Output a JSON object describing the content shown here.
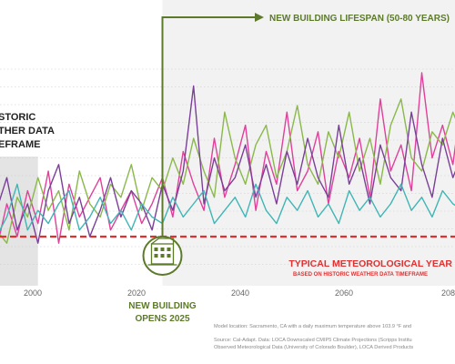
{
  "chart_data": {
    "type": "line",
    "xlim": [
      1990,
      2100
    ],
    "x_ticks": [
      2000,
      2020,
      2040,
      2060,
      2080
    ],
    "tick_labels": [
      "2000",
      "2020",
      "2040",
      "2060",
      "208"
    ],
    "grid": "horizontal dotted",
    "series": [
      {
        "color": "#e0409a",
        "x": [
          1993,
          1995,
          1997,
          1999,
          2001,
          2003,
          2005,
          2007,
          2009,
          2011,
          2013,
          2015,
          2017,
          2019,
          2021,
          2023,
          2025,
          2027,
          2029,
          2031,
          2033,
          2035,
          2037,
          2039,
          2041,
          2043,
          2045,
          2047,
          2049,
          2051,
          2053,
          2055,
          2057,
          2059,
          2061,
          2063,
          2065,
          2067,
          2069,
          2071,
          2073,
          2075,
          2077,
          2079,
          2081,
          2083
        ],
        "values": [
          3,
          10,
          5,
          12,
          7,
          15,
          4,
          13,
          8,
          11,
          14,
          6,
          9,
          12,
          7,
          10,
          14,
          8,
          18,
          13,
          9,
          20,
          11,
          16,
          22,
          9,
          18,
          13,
          24,
          12,
          15,
          21,
          10,
          18,
          14,
          20,
          11,
          26,
          15,
          19,
          12,
          30,
          17,
          22,
          16,
          28
        ]
      },
      {
        "color": "#8ab84a",
        "x": [
          1993,
          1995,
          1997,
          1999,
          2001,
          2003,
          2005,
          2007,
          2009,
          2011,
          2013,
          2015,
          2017,
          2019,
          2021,
          2023,
          2025,
          2027,
          2029,
          2031,
          2033,
          2035,
          2037,
          2039,
          2041,
          2043,
          2045,
          2047,
          2049,
          2051,
          2053,
          2055,
          2057,
          2059,
          2061,
          2063,
          2065,
          2067,
          2069,
          2071,
          2073,
          2075,
          2077,
          2079,
          2081,
          2083
        ],
        "values": [
          6,
          4,
          11,
          8,
          14,
          9,
          12,
          6,
          15,
          10,
          8,
          13,
          11,
          16,
          9,
          14,
          12,
          17,
          13,
          20,
          15,
          11,
          24,
          17,
          13,
          19,
          22,
          14,
          18,
          25,
          16,
          13,
          21,
          17,
          24,
          15,
          20,
          13,
          22,
          26,
          17,
          15,
          21,
          19,
          24,
          20
        ]
      },
      {
        "color": "#7b3f98",
        "x": [
          1993,
          1995,
          1997,
          1999,
          2001,
          2003,
          2005,
          2007,
          2009,
          2011,
          2013,
          2015,
          2017,
          2019,
          2021,
          2023,
          2025,
          2027,
          2029,
          2031,
          2033,
          2035,
          2037,
          2039,
          2041,
          2043,
          2045,
          2047,
          2049,
          2051,
          2053,
          2055,
          2057,
          2059,
          2061,
          2063,
          2065,
          2067,
          2069,
          2071,
          2073,
          2075,
          2077,
          2079,
          2081,
          2083
        ],
        "values": [
          9,
          14,
          6,
          10,
          4,
          12,
          16,
          7,
          11,
          5,
          9,
          14,
          8,
          12,
          10,
          6,
          13,
          9,
          15,
          28,
          10,
          17,
          12,
          14,
          19,
          11,
          16,
          10,
          18,
          13,
          20,
          14,
          11,
          22,
          13,
          17,
          10,
          19,
          14,
          12,
          24,
          16,
          11,
          20,
          14,
          18
        ]
      },
      {
        "color": "#3fb5b5",
        "x": [
          1993,
          1995,
          1997,
          1999,
          2001,
          2003,
          2005,
          2007,
          2009,
          2011,
          2013,
          2015,
          2017,
          2019,
          2021,
          2023,
          2025,
          2027,
          2029,
          2031,
          2033,
          2035,
          2037,
          2039,
          2041,
          2043,
          2045,
          2047,
          2049,
          2051,
          2053,
          2055,
          2057,
          2059,
          2061,
          2063,
          2065,
          2067,
          2069,
          2071,
          2073,
          2075,
          2077,
          2079,
          2081,
          2083
        ],
        "values": [
          5,
          8,
          13,
          6,
          9,
          7,
          10,
          12,
          6,
          8,
          11,
          7,
          9,
          6,
          10,
          8,
          7,
          11,
          8,
          10,
          12,
          7,
          9,
          11,
          8,
          13,
          9,
          7,
          11,
          9,
          12,
          8,
          10,
          7,
          12,
          9,
          11,
          8,
          10,
          13,
          9,
          11,
          8,
          12,
          10,
          9
        ]
      }
    ],
    "annotations": {
      "historic_label_lines": [
        "STORIC",
        "THER DATA",
        "EFRAME"
      ],
      "lifespan_label": "NEW BUILDING LIFESPAN (50-80 YEARS)",
      "opens_label_lines": [
        "NEW BUILDING",
        "OPENS 2025"
      ],
      "tmy_label": "TYPICAL METEOROLOGICAL YEAR",
      "tmy_sublabel": "BASED ON HISTORIC WEATHER DATA TIMEFRAME",
      "tmy_value": 5,
      "historic_range": [
        1990,
        2001
      ],
      "lifespan_start": 2025
    },
    "colors": {
      "line_accent": "#5c7a2a",
      "tmy_red": "#e03030",
      "lifespan_bg": "#f2f2f2",
      "historic_bg": "#e4e4e4",
      "gray_text": "#666666"
    }
  },
  "notes": [
    "Model location: Sacramento, CA with a daily maximum temperature above 103.9 °F and",
    "Source: Cal-Adapt. Data: LOCA Downscaled CMIP5 Climate Projections (Scripps Institu",
    "Observed Meteorological Data (University of Colorado Boulder), LOCA Derived Products"
  ]
}
